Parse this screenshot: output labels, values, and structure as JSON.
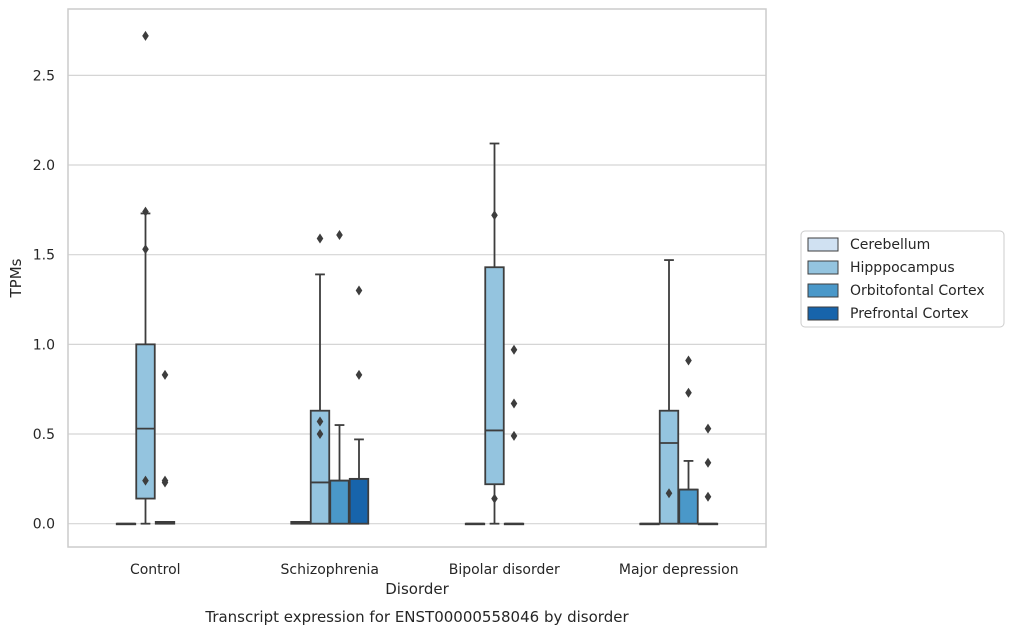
{
  "chart_data": {
    "type": "box",
    "title": "Transcript expression for ENST00000558046 by disorder",
    "xlabel": "Disorder",
    "ylabel": "TPMs",
    "ylim": [
      -0.13,
      2.87
    ],
    "yticks": [
      "0.0",
      "0.5",
      "1.0",
      "1.5",
      "2.0",
      "2.5"
    ],
    "grid": "horizontal",
    "legend_placement": "right",
    "categories": [
      "Control",
      "Schizophrenia",
      "Bipolar disorder",
      "Major depression"
    ],
    "series": [
      {
        "name": "Cerebellum",
        "color": "#d0e1f2"
      },
      {
        "name": "Hipppocampus",
        "color": "#94c4df"
      },
      {
        "name": "Orbitofontal Cortex",
        "color": "#4a98c9"
      },
      {
        "name": "Prefrontal Cortex",
        "color": "#1764ab"
      }
    ],
    "boxes": [
      {
        "category": 0,
        "series": 0,
        "whislo": 0,
        "q1": 0,
        "med": 0,
        "q3": 0,
        "whishi": 0,
        "fliers": []
      },
      {
        "category": 0,
        "series": 1,
        "whislo": 0,
        "q1": 0.14,
        "med": 0.53,
        "q3": 1.0,
        "whishi": 1.73,
        "fliers": [
          0.24,
          1.53,
          1.74,
          2.72
        ]
      },
      {
        "category": 0,
        "series": 2,
        "whislo": 0,
        "q1": 0,
        "med": 0.005,
        "q3": 0.01,
        "whishi": 0.01,
        "fliers": [
          0.23,
          0.24,
          0.83
        ]
      },
      {
        "category": 1,
        "series": 0,
        "whislo": 0,
        "q1": 0,
        "med": 0.005,
        "q3": 0.01,
        "whishi": 0.01,
        "fliers": []
      },
      {
        "category": 1,
        "series": 1,
        "whislo": 0,
        "q1": 0,
        "med": 0.23,
        "q3": 0.63,
        "whishi": 1.39,
        "fliers": [
          0.5,
          0.57,
          1.59
        ]
      },
      {
        "category": 1,
        "series": 2,
        "whislo": 0,
        "q1": 0,
        "med": 0.24,
        "q3": 0.24,
        "whishi": 0.55,
        "fliers": [
          1.61
        ]
      },
      {
        "category": 1,
        "series": 3,
        "whislo": 0,
        "q1": 0,
        "med": 0.25,
        "q3": 0.25,
        "whishi": 0.47,
        "fliers": [
          0.83,
          1.3
        ]
      },
      {
        "category": 2,
        "series": 0,
        "whislo": 0,
        "q1": 0,
        "med": 0,
        "q3": 0,
        "whishi": 0,
        "fliers": []
      },
      {
        "category": 2,
        "series": 1,
        "whislo": 0,
        "q1": 0.22,
        "med": 0.52,
        "q3": 1.43,
        "whishi": 2.12,
        "fliers": [
          0.14,
          1.72
        ]
      },
      {
        "category": 2,
        "series": 2,
        "whislo": 0,
        "q1": 0,
        "med": 0,
        "q3": 0,
        "whishi": 0,
        "fliers": [
          0.49,
          0.67,
          0.97
        ]
      },
      {
        "category": 3,
        "series": 0,
        "whislo": 0,
        "q1": 0,
        "med": 0,
        "q3": 0,
        "whishi": 0,
        "fliers": []
      },
      {
        "category": 3,
        "series": 1,
        "whislo": 0,
        "q1": 0,
        "med": 0.45,
        "q3": 0.63,
        "whishi": 1.47,
        "fliers": [
          0.17
        ]
      },
      {
        "category": 3,
        "series": 2,
        "whislo": 0,
        "q1": 0,
        "med": 0.19,
        "q3": 0.19,
        "whishi": 0.35,
        "fliers": [
          0.73,
          0.91
        ]
      },
      {
        "category": 3,
        "series": 3,
        "whislo": 0,
        "q1": 0,
        "med": 0,
        "q3": 0,
        "whishi": 0,
        "fliers": [
          0.15,
          0.34,
          0.53
        ]
      }
    ]
  }
}
